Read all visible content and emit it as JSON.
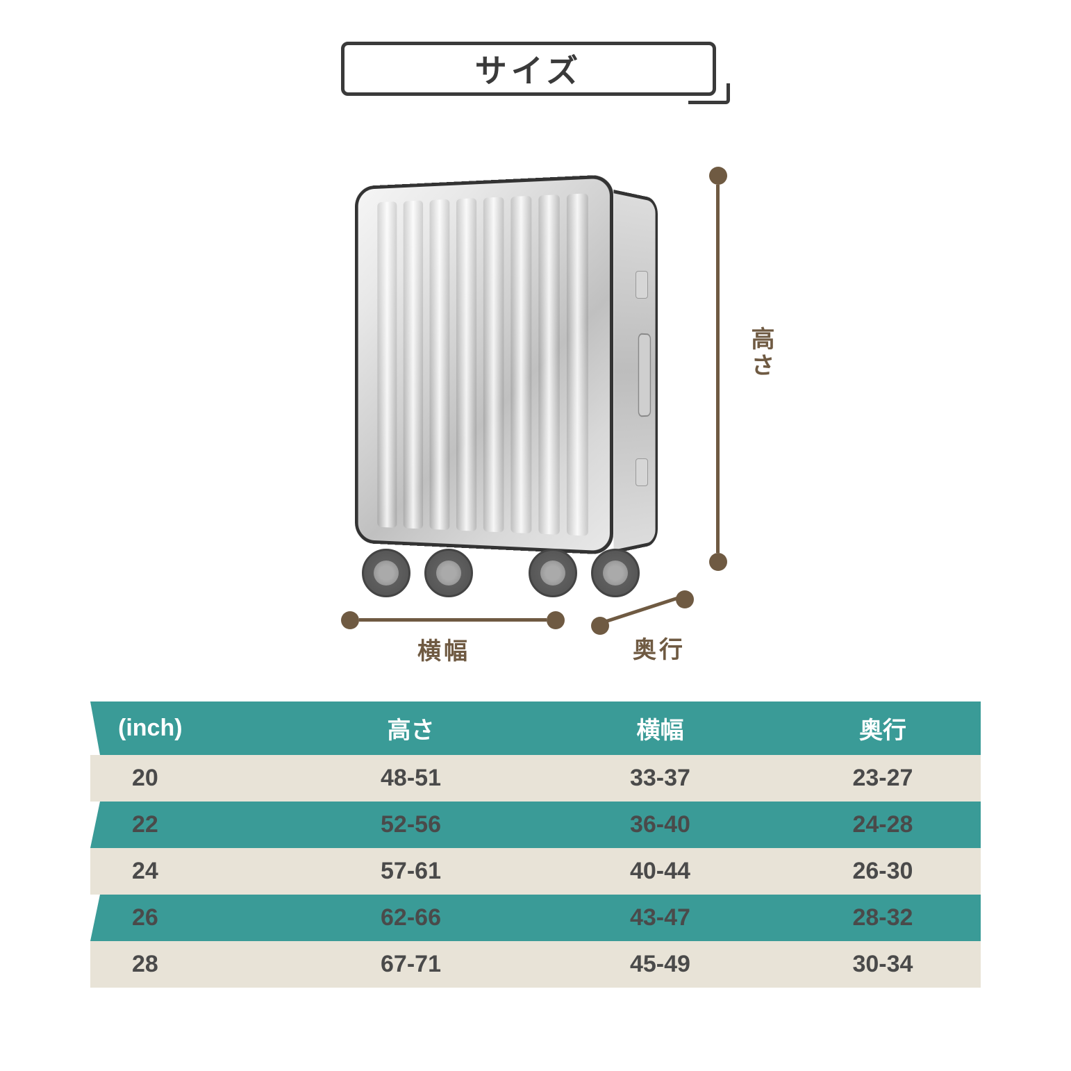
{
  "title": "サイズ",
  "dimensions": {
    "height_label": "高さ",
    "width_label": "横幅",
    "depth_label": "奥行"
  },
  "colors": {
    "teal": "#3a9b97",
    "beige": "#e8e3d7",
    "brown": "#6f5a42",
    "dark": "#3a3a3a",
    "text_dark": "#4a4a4a",
    "white": "#ffffff"
  },
  "table": {
    "columns": [
      "(inch)",
      "高さ",
      "横幅",
      "奥行"
    ],
    "rows": [
      {
        "inch": "20",
        "h": "48-51",
        "w": "33-37",
        "d": "23-27",
        "bg": "beige"
      },
      {
        "inch": "22",
        "h": "52-56",
        "w": "36-40",
        "d": "24-28",
        "bg": "teal"
      },
      {
        "inch": "24",
        "h": "57-61",
        "w": "40-44",
        "d": "26-30",
        "bg": "beige"
      },
      {
        "inch": "26",
        "h": "62-66",
        "w": "43-47",
        "d": "28-32",
        "bg": "teal"
      },
      {
        "inch": "28",
        "h": "67-71",
        "w": "45-49",
        "d": "30-34",
        "bg": "beige"
      }
    ],
    "header_bg": "#3a9b97",
    "beige_bg": "#e8e3d7",
    "teal_bg": "#3a9b97",
    "header_text": "#ffffff",
    "cell_text": "#4a4a4a",
    "fontsize": 34
  },
  "diagram_style": {
    "dot_color": "#6f5a42",
    "line_color": "#6f5a42",
    "label_color": "#6f5a42",
    "label_fontsize": 34
  }
}
